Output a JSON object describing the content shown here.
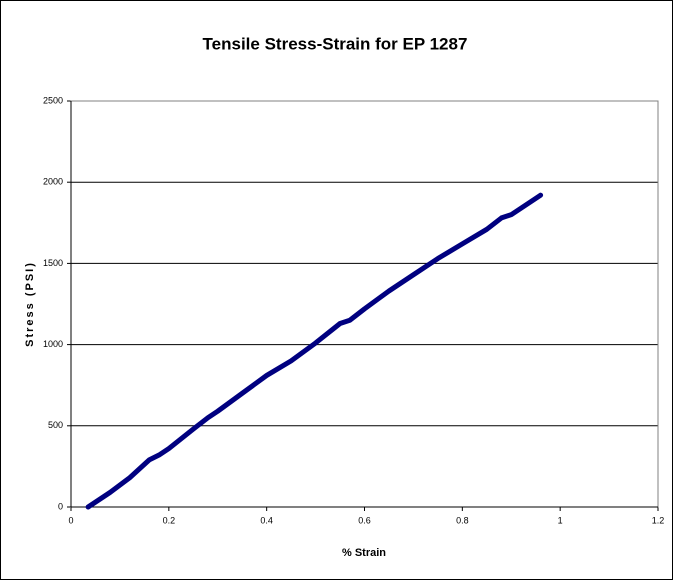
{
  "chart_data": {
    "type": "line",
    "title": "Tensile Stress-Strain for EP 1287",
    "x_label": "% Strain",
    "y_label": "Stress (PSI)",
    "series": [
      {
        "name": "EP 1287",
        "color": "#000080",
        "x": [
          0.035,
          0.05,
          0.08,
          0.12,
          0.16,
          0.18,
          0.2,
          0.25,
          0.28,
          0.3,
          0.35,
          0.4,
          0.45,
          0.5,
          0.55,
          0.57,
          0.6,
          0.65,
          0.7,
          0.75,
          0.8,
          0.85,
          0.88,
          0.9,
          0.93,
          0.96
        ],
        "values": [
          0,
          30,
          90,
          180,
          290,
          320,
          360,
          480,
          550,
          590,
          700,
          810,
          900,
          1010,
          1130,
          1150,
          1220,
          1330,
          1430,
          1530,
          1620,
          1710,
          1780,
          1800,
          1860,
          1920
        ]
      }
    ],
    "xlim": [
      0,
      1.2
    ],
    "xticks": [
      0,
      0.2,
      0.4,
      0.6,
      0.8,
      1,
      1.2
    ],
    "ylim": [
      0,
      2500
    ],
    "yticks": [
      0,
      500,
      1000,
      1500,
      2000,
      2500
    ],
    "grid": true
  }
}
